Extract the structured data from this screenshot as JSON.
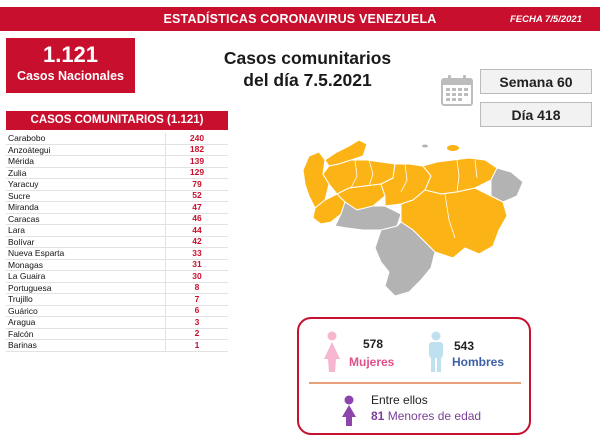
{
  "header": {
    "title": "ESTADÍSTICAS CORONAVIRUS VENEZUELA",
    "date": "FECHA 7/5/2021"
  },
  "total": {
    "number": "1.121",
    "label": "Casos Nacionales"
  },
  "main_title": {
    "line1": "Casos comunitarios",
    "line2": "del día 7.5.2021"
  },
  "week": "Semana 60",
  "day": "Día 418",
  "list": {
    "header": "CASOS COMUNITARIOS (1.121)",
    "rows": [
      {
        "name": "Carabobo",
        "count": "240"
      },
      {
        "name": "Anzoátegui",
        "count": "182"
      },
      {
        "name": "Mérida",
        "count": "139"
      },
      {
        "name": "Zulia",
        "count": "129"
      },
      {
        "name": "Yaracuy",
        "count": "79"
      },
      {
        "name": "Sucre",
        "count": "52"
      },
      {
        "name": "Miranda",
        "count": "47"
      },
      {
        "name": "Caracas",
        "count": "46"
      },
      {
        "name": "Lara",
        "count": "44"
      },
      {
        "name": "Bolívar",
        "count": "42"
      },
      {
        "name": "Nueva Esparta",
        "count": "33"
      },
      {
        "name": "Monagas",
        "count": "31"
      },
      {
        "name": "La Guaira",
        "count": "30"
      },
      {
        "name": "Portuguesa",
        "count": "8"
      },
      {
        "name": "Trujillo",
        "count": "7"
      },
      {
        "name": "Guárico",
        "count": "6"
      },
      {
        "name": "Aragua",
        "count": "3"
      },
      {
        "name": "Falcón",
        "count": "2"
      },
      {
        "name": "Barinas",
        "count": "1"
      }
    ]
  },
  "gender": {
    "female_count": "578",
    "female_label": "Mujeres",
    "male_count": "543",
    "male_label": "Hombres",
    "minors_title": "Entre ellos",
    "minors_count": "81",
    "minors_label": "Menores de edad"
  },
  "colors": {
    "brand_red": "#c8102e",
    "map_affected": "#fcb316",
    "map_unaffected": "#b3b3b3",
    "female": "#e0508a",
    "male": "#3d5fa8",
    "minor": "#7a3f98"
  },
  "icons": {
    "calendar": "calendar-icon",
    "female": "female-person-icon",
    "male": "male-person-icon",
    "minor": "child-icon"
  }
}
